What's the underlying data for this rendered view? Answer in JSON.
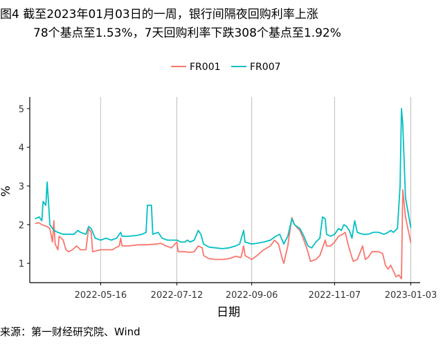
{
  "figure": {
    "title_line1": "图4  截至2023年01月03日的一周，银行间隔夜回购利率上涨",
    "title_line2": "78个基点至1.53%，7天回购利率下跌308个基点至1.92%",
    "source": "来源：第一财经研究院、Wind"
  },
  "chart_data": {
    "type": "line",
    "xlabel": "日期",
    "ylabel": "%",
    "x_range": [
      "2022-03-24",
      "2023-01-10"
    ],
    "ylim": [
      0.5,
      5.3
    ],
    "y_ticks": [
      1,
      2,
      3,
      4,
      5
    ],
    "x_ticks": [
      "2022-05-16",
      "2022-07-12",
      "2022-09-06",
      "2022-11-07",
      "2023-01-03"
    ],
    "grid": "vertical lines at x ticks",
    "legend": "top-center",
    "series": [
      {
        "name": "FR001",
        "color": "#F8766D",
        "points": [
          [
            "2022-03-28",
            2.03
          ],
          [
            "2022-03-31",
            2.05
          ],
          [
            "2022-04-02",
            2.0
          ],
          [
            "2022-04-06",
            1.95
          ],
          [
            "2022-04-08",
            1.9
          ],
          [
            "2022-04-10",
            1.55
          ],
          [
            "2022-04-11",
            2.1
          ],
          [
            "2022-04-12",
            1.5
          ],
          [
            "2022-04-14",
            1.35
          ],
          [
            "2022-04-15",
            1.7
          ],
          [
            "2022-04-18",
            1.6
          ],
          [
            "2022-04-20",
            1.35
          ],
          [
            "2022-04-22",
            1.3
          ],
          [
            "2022-04-25",
            1.35
          ],
          [
            "2022-04-28",
            1.45
          ],
          [
            "2022-05-01",
            1.35
          ],
          [
            "2022-05-05",
            1.35
          ],
          [
            "2022-05-07",
            1.9
          ],
          [
            "2022-05-09",
            1.8
          ],
          [
            "2022-05-10",
            1.3
          ],
          [
            "2022-05-16",
            1.35
          ],
          [
            "2022-05-20",
            1.35
          ],
          [
            "2022-05-25",
            1.35
          ],
          [
            "2022-05-27",
            1.4
          ],
          [
            "2022-05-30",
            1.45
          ],
          [
            "2022-05-31",
            1.65
          ],
          [
            "2022-06-01",
            1.45
          ],
          [
            "2022-06-06",
            1.45
          ],
          [
            "2022-06-13",
            1.48
          ],
          [
            "2022-06-20",
            1.48
          ],
          [
            "2022-06-27",
            1.5
          ],
          [
            "2022-06-30",
            1.52
          ],
          [
            "2022-07-01",
            1.5
          ],
          [
            "2022-07-04",
            1.45
          ],
          [
            "2022-07-08",
            1.4
          ],
          [
            "2022-07-12",
            1.55
          ],
          [
            "2022-07-13",
            1.3
          ],
          [
            "2022-07-18",
            1.3
          ],
          [
            "2022-07-22",
            1.28
          ],
          [
            "2022-07-25",
            1.3
          ],
          [
            "2022-07-28",
            1.45
          ],
          [
            "2022-07-31",
            1.4
          ],
          [
            "2022-08-01",
            1.2
          ],
          [
            "2022-08-05",
            1.12
          ],
          [
            "2022-08-10",
            1.1
          ],
          [
            "2022-08-15",
            1.1
          ],
          [
            "2022-08-20",
            1.12
          ],
          [
            "2022-08-25",
            1.18
          ],
          [
            "2022-08-29",
            1.15
          ],
          [
            "2022-08-31",
            1.45
          ],
          [
            "2022-09-01",
            1.2
          ],
          [
            "2022-09-06",
            1.1
          ],
          [
            "2022-09-10",
            1.2
          ],
          [
            "2022-09-15",
            1.35
          ],
          [
            "2022-09-20",
            1.45
          ],
          [
            "2022-09-23",
            1.6
          ],
          [
            "2022-09-26",
            1.5
          ],
          [
            "2022-09-29",
            1.1
          ],
          [
            "2022-09-30",
            1.0
          ],
          [
            "2022-10-03",
            1.45
          ],
          [
            "2022-10-06",
            2.18
          ],
          [
            "2022-10-08",
            2.0
          ],
          [
            "2022-10-12",
            1.85
          ],
          [
            "2022-10-15",
            1.6
          ],
          [
            "2022-10-18",
            1.3
          ],
          [
            "2022-10-20",
            1.05
          ],
          [
            "2022-10-24",
            1.1
          ],
          [
            "2022-10-27",
            1.2
          ],
          [
            "2022-10-31",
            1.6
          ],
          [
            "2022-11-01",
            1.45
          ],
          [
            "2022-11-04",
            1.45
          ],
          [
            "2022-11-07",
            1.55
          ],
          [
            "2022-11-10",
            1.7
          ],
          [
            "2022-11-13",
            1.75
          ],
          [
            "2022-11-15",
            1.8
          ],
          [
            "2022-11-17",
            1.5
          ],
          [
            "2022-11-20",
            1.15
          ],
          [
            "2022-11-21",
            1.05
          ],
          [
            "2022-11-24",
            1.1
          ],
          [
            "2022-11-28",
            1.45
          ],
          [
            "2022-11-30",
            1.1
          ],
          [
            "2022-12-02",
            1.15
          ],
          [
            "2022-12-05",
            1.3
          ],
          [
            "2022-12-10",
            1.3
          ],
          [
            "2022-12-13",
            1.25
          ],
          [
            "2022-12-15",
            0.95
          ],
          [
            "2022-12-17",
            0.85
          ],
          [
            "2022-12-19",
            0.95
          ],
          [
            "2022-12-21",
            0.8
          ],
          [
            "2022-12-23",
            0.65
          ],
          [
            "2022-12-25",
            0.7
          ],
          [
            "2022-12-27",
            0.6
          ],
          [
            "2022-12-28",
            2.9
          ],
          [
            "2022-12-30",
            2.2
          ],
          [
            "2023-01-03",
            1.53
          ]
        ]
      },
      {
        "name": "FR007",
        "color": "#00BFC4",
        "points": [
          [
            "2022-03-28",
            2.15
          ],
          [
            "2022-03-31",
            2.2
          ],
          [
            "2022-04-02",
            2.1
          ],
          [
            "2022-04-03",
            2.6
          ],
          [
            "2022-04-05",
            2.5
          ],
          [
            "2022-04-06",
            3.1
          ],
          [
            "2022-04-07",
            2.6
          ],
          [
            "2022-04-08",
            2.0
          ],
          [
            "2022-04-11",
            1.85
          ],
          [
            "2022-04-14",
            1.8
          ],
          [
            "2022-04-18",
            1.75
          ],
          [
            "2022-04-22",
            1.75
          ],
          [
            "2022-04-26",
            1.75
          ],
          [
            "2022-04-29",
            1.85
          ],
          [
            "2022-05-01",
            1.8
          ],
          [
            "2022-05-05",
            1.75
          ],
          [
            "2022-05-07",
            1.95
          ],
          [
            "2022-05-09",
            1.9
          ],
          [
            "2022-05-12",
            1.65
          ],
          [
            "2022-05-16",
            1.6
          ],
          [
            "2022-05-20",
            1.65
          ],
          [
            "2022-05-24",
            1.6
          ],
          [
            "2022-05-28",
            1.65
          ],
          [
            "2022-05-31",
            1.8
          ],
          [
            "2022-06-01",
            1.7
          ],
          [
            "2022-06-06",
            1.7
          ],
          [
            "2022-06-12",
            1.72
          ],
          [
            "2022-06-16",
            1.75
          ],
          [
            "2022-06-19",
            1.8
          ],
          [
            "2022-06-20",
            2.5
          ],
          [
            "2022-06-23",
            2.5
          ],
          [
            "2022-06-24",
            1.75
          ],
          [
            "2022-06-28",
            1.8
          ],
          [
            "2022-07-01",
            1.65
          ],
          [
            "2022-07-05",
            1.6
          ],
          [
            "2022-07-08",
            1.6
          ],
          [
            "2022-07-12",
            1.6
          ],
          [
            "2022-07-15",
            1.55
          ],
          [
            "2022-07-18",
            1.55
          ],
          [
            "2022-07-20",
            1.6
          ],
          [
            "2022-07-22",
            1.55
          ],
          [
            "2022-07-25",
            1.6
          ],
          [
            "2022-07-28",
            1.85
          ],
          [
            "2022-07-30",
            1.75
          ],
          [
            "2022-08-01",
            1.5
          ],
          [
            "2022-08-05",
            1.42
          ],
          [
            "2022-08-10",
            1.4
          ],
          [
            "2022-08-15",
            1.38
          ],
          [
            "2022-08-20",
            1.4
          ],
          [
            "2022-08-25",
            1.45
          ],
          [
            "2022-08-28",
            1.5
          ],
          [
            "2022-08-31",
            1.85
          ],
          [
            "2022-09-01",
            1.55
          ],
          [
            "2022-09-06",
            1.5
          ],
          [
            "2022-09-10",
            1.52
          ],
          [
            "2022-09-15",
            1.55
          ],
          [
            "2022-09-20",
            1.6
          ],
          [
            "2022-09-24",
            1.7
          ],
          [
            "2022-09-27",
            1.75
          ],
          [
            "2022-09-30",
            1.5
          ],
          [
            "2022-10-03",
            1.7
          ],
          [
            "2022-10-06",
            2.15
          ],
          [
            "2022-10-08",
            2.0
          ],
          [
            "2022-10-12",
            1.9
          ],
          [
            "2022-10-15",
            1.7
          ],
          [
            "2022-10-18",
            1.45
          ],
          [
            "2022-10-21",
            1.4
          ],
          [
            "2022-10-24",
            1.55
          ],
          [
            "2022-10-27",
            1.65
          ],
          [
            "2022-10-29",
            2.2
          ],
          [
            "2022-10-31",
            2.15
          ],
          [
            "2022-11-01",
            1.75
          ],
          [
            "2022-11-04",
            1.7
          ],
          [
            "2022-11-07",
            1.75
          ],
          [
            "2022-11-10",
            1.9
          ],
          [
            "2022-11-12",
            1.85
          ],
          [
            "2022-11-14",
            2.0
          ],
          [
            "2022-11-16",
            1.95
          ],
          [
            "2022-11-18",
            1.85
          ],
          [
            "2022-11-20",
            1.65
          ],
          [
            "2022-11-22",
            2.1
          ],
          [
            "2022-11-24",
            1.8
          ],
          [
            "2022-11-28",
            1.75
          ],
          [
            "2022-11-30",
            1.75
          ],
          [
            "2022-12-02",
            1.75
          ],
          [
            "2022-12-06",
            1.8
          ],
          [
            "2022-12-10",
            1.8
          ],
          [
            "2022-12-14",
            1.75
          ],
          [
            "2022-12-17",
            1.8
          ],
          [
            "2022-12-19",
            1.85
          ],
          [
            "2022-12-21",
            1.8
          ],
          [
            "2022-12-24",
            1.9
          ],
          [
            "2022-12-26",
            3.0
          ],
          [
            "2022-12-27",
            5.0
          ],
          [
            "2022-12-28",
            4.6
          ],
          [
            "2022-12-30",
            2.7
          ],
          [
            "2023-01-03",
            1.92
          ]
        ]
      }
    ]
  }
}
